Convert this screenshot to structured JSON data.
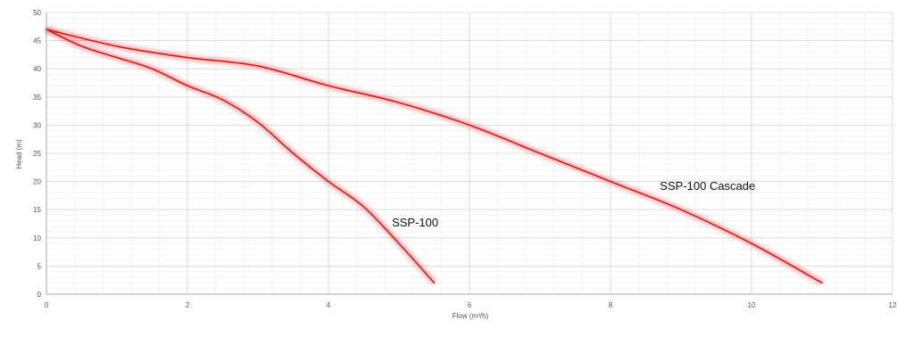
{
  "chart_data": {
    "type": "line",
    "title": "",
    "xlabel": "Flow (m³/h)",
    "ylabel": "Head (m)",
    "xlim": [
      0,
      12
    ],
    "ylim": [
      0,
      50
    ],
    "xticks": [
      "0",
      "2",
      "4",
      "6",
      "8",
      "10",
      "12"
    ],
    "yticks": [
      "0",
      "5",
      "10",
      "15",
      "20",
      "25",
      "30",
      "35",
      "40",
      "45",
      "50"
    ],
    "grid": true,
    "legend": "none",
    "line_color": "#e01818",
    "grid_major_color": "#d8d8d8",
    "grid_minor_color": "#eeeeee",
    "series": [
      {
        "name": "SSP-100",
        "x": [
          0,
          0.5,
          1.0,
          1.5,
          2.0,
          2.5,
          3.0,
          3.5,
          4.0,
          4.5,
          5.0,
          5.5
        ],
        "y": [
          47,
          44,
          42,
          40,
          37,
          34.5,
          30.5,
          25,
          20,
          15.5,
          9,
          2
        ]
      },
      {
        "name": "SSP-100 Cascade",
        "x": [
          0,
          1,
          2,
          3,
          4,
          5,
          6,
          7,
          8,
          9,
          10,
          11
        ],
        "y": [
          47,
          44,
          42,
          40.5,
          37,
          34,
          30,
          25,
          20,
          15,
          9,
          2
        ]
      }
    ],
    "annotations": [
      {
        "text": "SSP-100",
        "x": 4.9,
        "y": 12
      },
      {
        "text": "SSP-100 Cascade",
        "x": 8.7,
        "y": 18.5
      }
    ]
  }
}
